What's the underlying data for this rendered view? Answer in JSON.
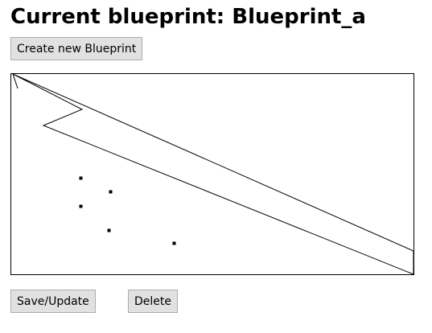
{
  "header": {
    "title": "Current blueprint: Blueprint_a"
  },
  "toolbar": {
    "create_label": "Create new Blueprint"
  },
  "actions": {
    "save_label": "Save/Update",
    "delete_label": "Delete"
  },
  "colors": {
    "button_bg": "#e1e1e1",
    "button_border": "#adadad",
    "stroke": "#000000"
  }
}
